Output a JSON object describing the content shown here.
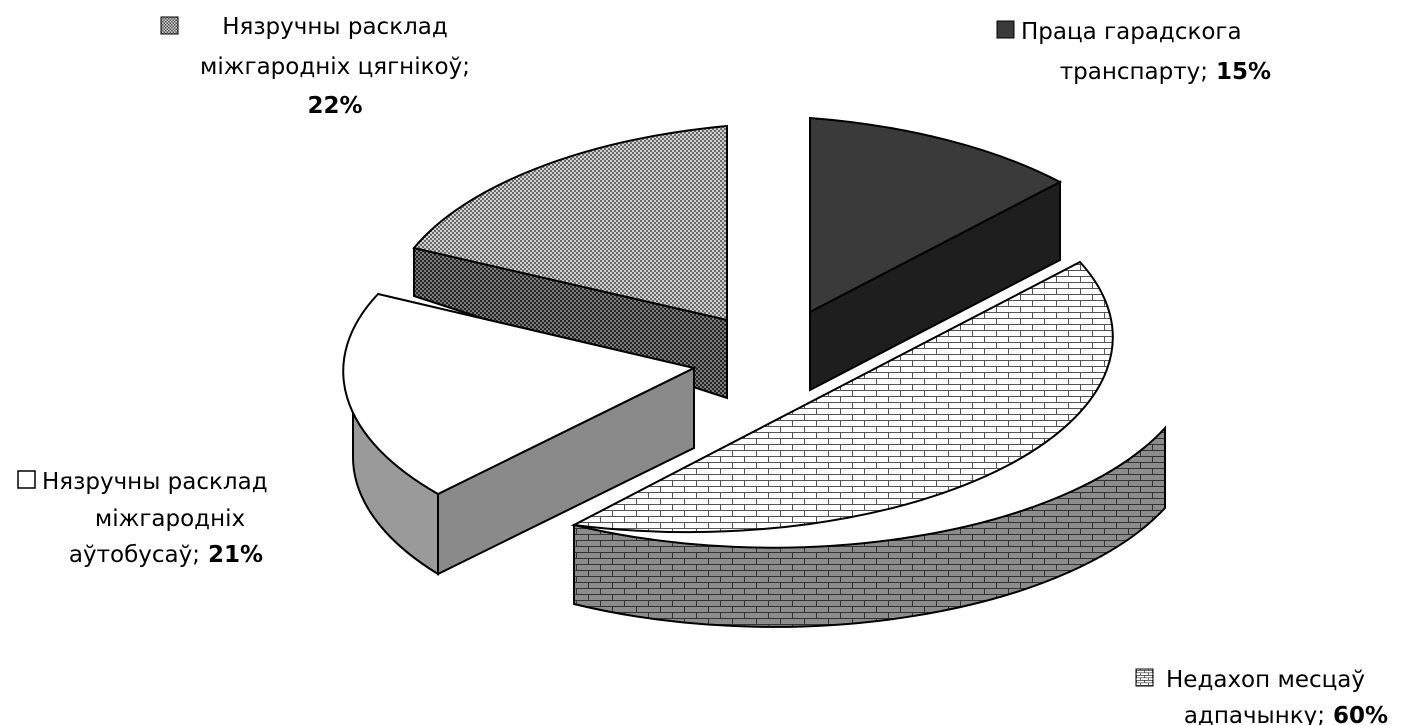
{
  "chart_data": {
    "type": "pie",
    "style": "3d-exploded",
    "slices": [
      {
        "category": "Праца гарадскога транспарту",
        "value": 15,
        "label_lines": [
          "Праца гарадскога",
          "транспарту;"
        ],
        "value_text": "15%",
        "color": "#3a3a3a",
        "pattern": "solid-dark"
      },
      {
        "category": "Недахоп месцаў адпачынку",
        "value": 60,
        "label_lines": [
          "Недахоп месцаў",
          "адпачынку;"
        ],
        "value_text": "60%",
        "color": "#ffffff",
        "pattern": "brick"
      },
      {
        "category": "Нязручны расклад міжгародніх аўтобусаў",
        "value": 21,
        "label_lines": [
          "Нязручны расклад",
          "міжгародніх",
          "аўтобусаў;"
        ],
        "value_text": "21%",
        "color": "#ffffff",
        "pattern": "none"
      },
      {
        "category": "Нязручны расклад міжгародніх цягнікоў",
        "value": 22,
        "label_lines": [
          "Нязручны расклад",
          "міжгародніх цягнікоў;"
        ],
        "value_text": "22%",
        "color": "#aaaaaa",
        "pattern": "checker"
      }
    ]
  }
}
